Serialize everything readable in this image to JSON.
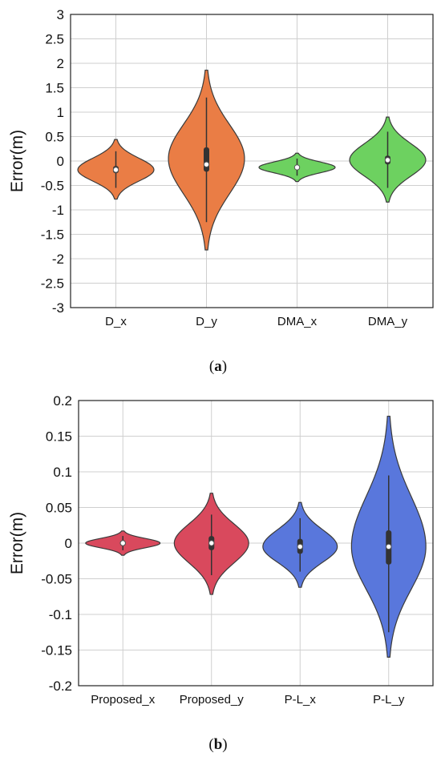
{
  "chart_data": [
    {
      "type": "violin",
      "caption_letter": "a",
      "ylabel": "Error(m)",
      "ylim": [
        -3,
        3
      ],
      "yticks": [
        "3",
        "2.5",
        "2",
        "1.5",
        "1",
        "0.5",
        "0",
        "-0.5",
        "-1",
        "-1.5",
        "-2",
        "-2.5",
        "-3"
      ],
      "grid": true,
      "categories": [
        "D_x",
        "D_y",
        "DMA_x",
        "DMA_y"
      ],
      "series": [
        {
          "color": "#ea7d45",
          "min": -0.78,
          "max": 0.44,
          "center": -0.18,
          "halfwidth": 0.42,
          "q1": -0.25,
          "q3": -0.1,
          "whisker": [
            -0.55,
            0.2
          ],
          "median": -0.18
        },
        {
          "color": "#ea7d45",
          "min": -1.82,
          "max": 1.86,
          "center": 0.05,
          "halfwidth": 0.42,
          "q1": -0.22,
          "q3": 0.28,
          "whisker": [
            -1.25,
            1.3
          ],
          "median": -0.07
        },
        {
          "color": "#6dd160",
          "min": -0.42,
          "max": 0.16,
          "center": -0.13,
          "halfwidth": 0.42,
          "q1": -0.17,
          "q3": -0.09,
          "whisker": [
            -0.3,
            0.05
          ],
          "median": -0.13
        },
        {
          "color": "#6dd160",
          "min": -0.84,
          "max": 0.9,
          "center": 0.02,
          "halfwidth": 0.42,
          "q1": -0.07,
          "q3": 0.11,
          "whisker": [
            -0.55,
            0.6
          ],
          "median": 0.02
        }
      ]
    },
    {
      "type": "violin",
      "caption_letter": "b",
      "ylabel": "Error(m)",
      "ylim": [
        -0.2,
        0.2
      ],
      "yticks": [
        "0.2",
        "0.15",
        "0.1",
        "0.05",
        "0",
        "-0.05",
        "-0.1",
        "-0.15",
        "-0.2"
      ],
      "grid": true,
      "categories": [
        "Proposed_x",
        "Proposed_y",
        "P-L_x",
        "P-L_y"
      ],
      "series": [
        {
          "color": "#d9495d",
          "min": -0.017,
          "max": 0.017,
          "center": 0.0,
          "halfwidth": 0.42,
          "q1": -0.004,
          "q3": 0.004,
          "whisker": [
            -0.01,
            0.01
          ],
          "median": 0.0
        },
        {
          "color": "#d9495d",
          "min": -0.072,
          "max": 0.07,
          "center": 0.0,
          "halfwidth": 0.42,
          "q1": -0.01,
          "q3": 0.01,
          "whisker": [
            -0.045,
            0.04
          ],
          "median": 0.0
        },
        {
          "color": "#5977dc",
          "min": -0.062,
          "max": 0.057,
          "center": -0.005,
          "halfwidth": 0.42,
          "q1": -0.015,
          "q3": 0.006,
          "whisker": [
            -0.04,
            0.035
          ],
          "median": -0.005
        },
        {
          "color": "#5977dc",
          "min": -0.16,
          "max": 0.178,
          "center": -0.005,
          "halfwidth": 0.42,
          "q1": -0.03,
          "q3": 0.018,
          "whisker": [
            -0.125,
            0.095
          ],
          "median": -0.005
        }
      ]
    }
  ]
}
